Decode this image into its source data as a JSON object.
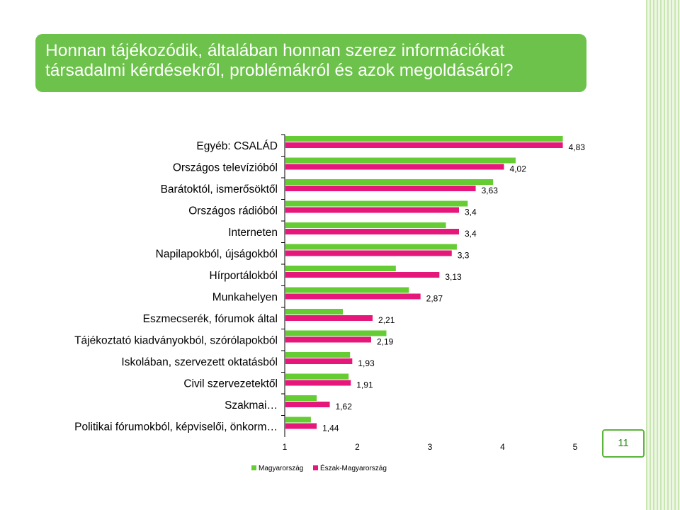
{
  "slide": {
    "title_line1": "Honnan tájékozódik, általában honnan szerez információkat",
    "title_line2": "társadalmi kérdésekről, problémákról és azok megoldásáról?",
    "page_number": "11",
    "accent_color": "#6cc24a"
  },
  "chart_data": {
    "type": "bar",
    "orientation": "horizontal",
    "categories": [
      "Egyéb: CSALÁD",
      "Országos televízióból",
      "Barátoktól, ismerősöktől",
      "Országos rádióból",
      "Interneten",
      "Napilapokból, újságokból",
      "Hírportálokból",
      "Munkahelyen",
      "Eszmecserék, fórumok által",
      "Tájékoztató kiadványokból, szórólapokból",
      "Iskolában, szervezett oktatásból",
      "Civil szervezetektől",
      "Szakmai…",
      "Politikai fórumokból, képviselői, önkorm…"
    ],
    "series": [
      {
        "name": "Magyarország",
        "color": "#66cc33",
        "values": [
          4.83,
          4.18,
          3.87,
          3.52,
          3.22,
          3.37,
          2.53,
          2.71,
          1.8,
          2.4,
          1.9,
          1.88,
          1.44,
          1.36
        ]
      },
      {
        "name": "Észak-Magyarország",
        "color": "#e6177a",
        "values": [
          4.83,
          4.02,
          3.63,
          3.4,
          3.4,
          3.3,
          3.13,
          2.87,
          2.21,
          2.19,
          1.93,
          1.91,
          1.62,
          1.44
        ]
      }
    ],
    "data_labels": [
      "4,83",
      "4,02",
      "3,63",
      "3,4",
      "3,4",
      "3,3",
      "3,13",
      "2,87",
      "2,21",
      "2,19",
      "1,93",
      "1,91",
      "1,62",
      "1,44"
    ],
    "x_ticks": [
      "1",
      "2",
      "3",
      "4",
      "5"
    ],
    "xlim": [
      1,
      5
    ],
    "legend_position": "bottom",
    "grid": false
  }
}
